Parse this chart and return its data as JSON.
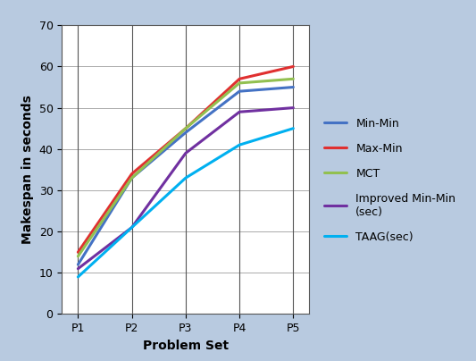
{
  "x_labels": [
    "P1",
    "P2",
    "P3",
    "P4",
    "P5"
  ],
  "series": [
    {
      "name": "Min-Min",
      "values": [
        12,
        33,
        44,
        54,
        55
      ],
      "color": "#4472C4",
      "linewidth": 2.2
    },
    {
      "name": "Max-Min",
      "values": [
        15,
        34,
        45,
        57,
        60
      ],
      "color": "#E03030",
      "linewidth": 2.2
    },
    {
      "name": "MCT",
      "values": [
        14,
        33,
        45,
        56,
        57
      ],
      "color": "#92C050",
      "linewidth": 2.2
    },
    {
      "name": "Improved Min-Min\n(sec)",
      "values": [
        11,
        21,
        39,
        49,
        50
      ],
      "color": "#7030A0",
      "linewidth": 2.2
    },
    {
      "name": "TAAG(sec)",
      "values": [
        9,
        21,
        33,
        41,
        45
      ],
      "color": "#00B0F0",
      "linewidth": 2.2
    }
  ],
  "xlabel": "Problem Set",
  "ylabel": "Makespan in seconds",
  "ylim": [
    0,
    70
  ],
  "yticks": [
    0,
    10,
    20,
    30,
    40,
    50,
    60,
    70
  ],
  "bg_color": "#AABBD4",
  "plot_bg_color": "#FFFFFF",
  "axis_fontsize": 10,
  "legend_fontsize": 9,
  "tick_fontsize": 9
}
